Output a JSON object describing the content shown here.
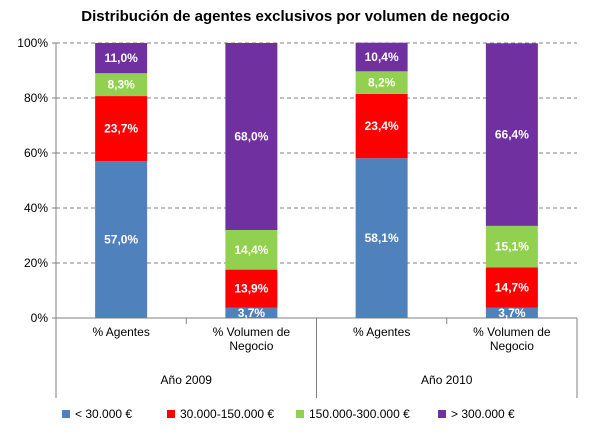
{
  "chart_data": {
    "type": "bar",
    "stacked": true,
    "percent": true,
    "title": "Distribución de agentes exclusivos por volumen de negocio",
    "xlabel": "",
    "ylabel": "",
    "ylim": [
      0,
      100
    ],
    "yticks": [
      "0%",
      "20%",
      "40%",
      "60%",
      "80%",
      "100%"
    ],
    "grid": true,
    "legend_position": "bottom",
    "groups": [
      "Año 2009",
      "Año 2010"
    ],
    "categories": [
      "% Agentes",
      "% Volumen de Negocio",
      "% Agentes",
      "% Volumen de Negocio"
    ],
    "category_lines": [
      [
        "% Agentes"
      ],
      [
        "% Volumen de",
        "Negocio"
      ],
      [
        "% Agentes"
      ],
      [
        "% Volumen de",
        "Negocio"
      ]
    ],
    "series": [
      {
        "name": "< 30.000  €",
        "color": "#4F81BD",
        "values": [
          57.0,
          3.7,
          58.1,
          3.7
        ],
        "labels": [
          "57,0%",
          "3,7%",
          "58,1%",
          "3,7%"
        ]
      },
      {
        "name": "30.000-150.000  €",
        "color": "#FF0000",
        "values": [
          23.7,
          13.9,
          23.4,
          14.7
        ],
        "labels": [
          "23,7%",
          "13,9%",
          "23,4%",
          "14,7%"
        ]
      },
      {
        "name": "150.000-300.000  €",
        "color": "#92D050",
        "values": [
          8.3,
          14.4,
          8.2,
          15.1
        ],
        "labels": [
          "8,3%",
          "14,4%",
          "8,2%",
          "15,1%"
        ]
      },
      {
        "name": "> 300.000  €",
        "color": "#7030A0",
        "values": [
          11.0,
          68.0,
          10.4,
          66.4
        ],
        "labels": [
          "11,0%",
          "68,0%",
          "10,4%",
          "66,4%"
        ]
      }
    ]
  }
}
